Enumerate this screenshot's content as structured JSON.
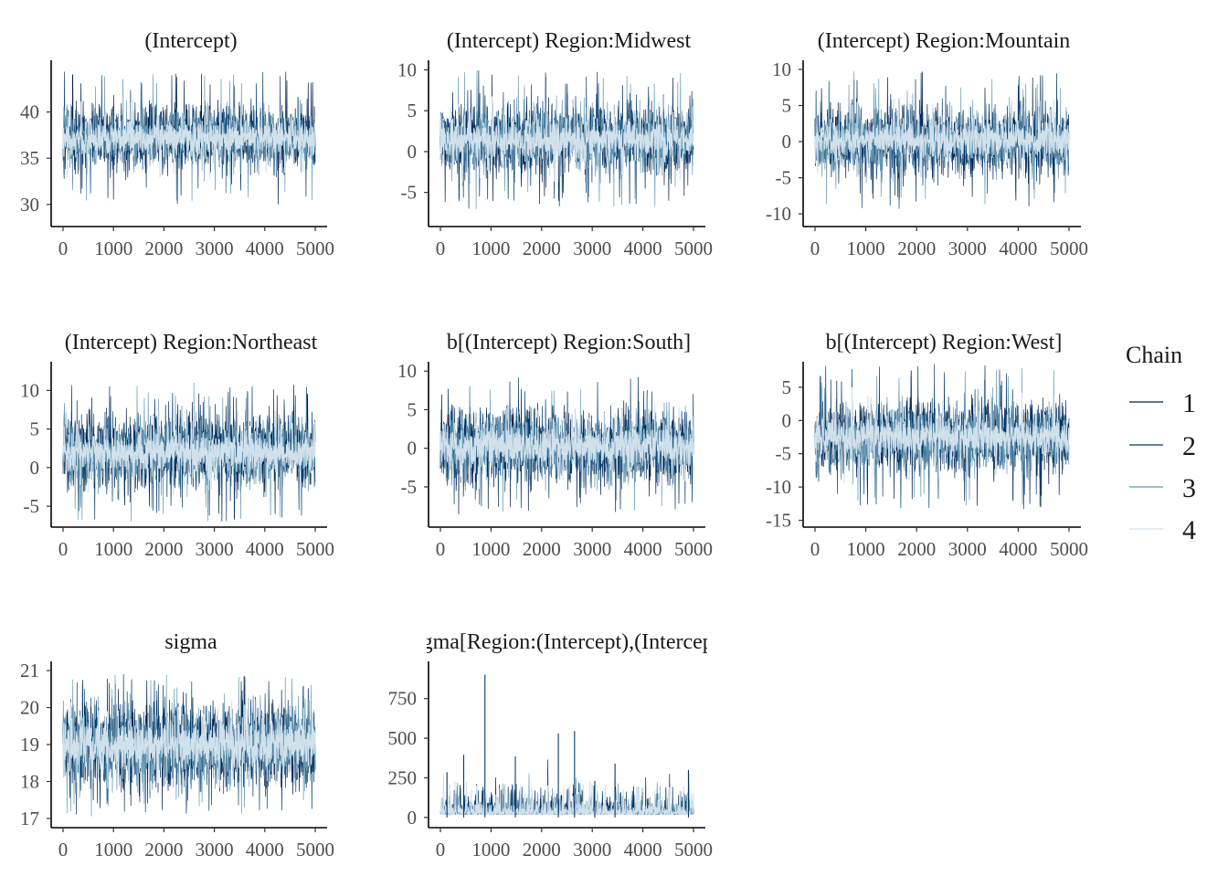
{
  "legend": {
    "title": "Chain",
    "entries": [
      {
        "label": "1",
        "color": "#011f4b"
      },
      {
        "label": "2",
        "color": "#03396c"
      },
      {
        "label": "3",
        "color": "#6497b1"
      },
      {
        "label": "4",
        "color": "#d1e1ec"
      }
    ]
  },
  "chart_data": [
    {
      "type": "line",
      "title": "(Intercept)",
      "xlim": [
        0,
        5000
      ],
      "ylim": [
        28.2,
        45
      ],
      "x_ticks": [
        0,
        1000,
        2000,
        3000,
        4000,
        5000
      ],
      "y_ticks": [
        30,
        35,
        40
      ],
      "center": 37.2,
      "spread": 1.6,
      "extreme": 7.2,
      "seed": 11
    },
    {
      "type": "line",
      "title": "(Intercept) Region:Midwest",
      "xlim": [
        0,
        5000
      ],
      "ylim": [
        -8.5,
        10.5
      ],
      "x_ticks": [
        0,
        1000,
        2000,
        3000,
        4000,
        5000
      ],
      "y_ticks": [
        -5,
        0,
        5,
        10
      ],
      "center": 1.5,
      "spread": 2.0,
      "extreme": 8.5,
      "seed": 23
    },
    {
      "type": "line",
      "title": "(Intercept) Region:Mountain",
      "xlim": [
        0,
        5000
      ],
      "ylim": [
        -11,
        10.5
      ],
      "x_ticks": [
        0,
        1000,
        2000,
        3000,
        4000,
        5000
      ],
      "y_ticks": [
        -10,
        -5,
        0,
        5,
        10
      ],
      "center": 0.2,
      "spread": 2.2,
      "extreme": 9.5,
      "seed": 37
    },
    {
      "type": "line",
      "title": "(Intercept) Region:Northeast",
      "xlim": [
        0,
        5000
      ],
      "ylim": [
        -7,
        13
      ],
      "x_ticks": [
        0,
        1000,
        2000,
        3000,
        4000,
        5000
      ],
      "y_ticks": [
        -5,
        0,
        5,
        10
      ],
      "center": 2.0,
      "spread": 2.2,
      "extreme": 9.0,
      "seed": 41
    },
    {
      "type": "line",
      "title": "b[(Intercept) Region:South]",
      "xlim": [
        0,
        5000
      ],
      "ylim": [
        -9.5,
        10.5
      ],
      "x_ticks": [
        0,
        1000,
        2000,
        3000,
        4000,
        5000
      ],
      "y_ticks": [
        -5,
        0,
        5,
        10
      ],
      "center": 0.2,
      "spread": 2.3,
      "extreme": 9.0,
      "seed": 53
    },
    {
      "type": "line",
      "title": "b[(Intercept) Region:West]",
      "xlim": [
        0,
        5000
      ],
      "ylim": [
        -15.2,
        8
      ],
      "x_ticks": [
        0,
        1000,
        2000,
        3000,
        4000,
        5000
      ],
      "y_ticks": [
        -15,
        -10,
        -5,
        0,
        5
      ],
      "center": -2.5,
      "spread": 2.5,
      "extreme": 11.0,
      "seed": 67
    },
    {
      "type": "line",
      "title": "sigma",
      "xlim": [
        0,
        5000
      ],
      "ylim": [
        16.9,
        21.1
      ],
      "x_ticks": [
        0,
        1000,
        2000,
        3000,
        4000,
        5000
      ],
      "y_ticks": [
        17,
        18,
        19,
        20,
        21
      ],
      "center": 19.0,
      "spread": 0.55,
      "extreme": 1.9,
      "seed": 79
    },
    {
      "type": "line",
      "title": "Sigma[Region:(Intercept),(Intercept)]",
      "xlim": [
        0,
        5000
      ],
      "ylim": [
        -30,
        950
      ],
      "x_ticks": [
        0,
        1000,
        2000,
        3000,
        4000,
        5000
      ],
      "y_ticks": [
        0,
        250,
        500,
        750
      ],
      "center": 30,
      "spread": 25,
      "extreme": 0,
      "seed": 97,
      "skewed": true,
      "spikes": [
        [
          880,
          900
        ],
        [
          2650,
          545
        ],
        [
          2330,
          530
        ],
        [
          1480,
          385
        ],
        [
          460,
          395
        ],
        [
          130,
          285
        ],
        [
          4900,
          300
        ],
        [
          3450,
          340
        ],
        [
          3050,
          230
        ]
      ]
    }
  ]
}
